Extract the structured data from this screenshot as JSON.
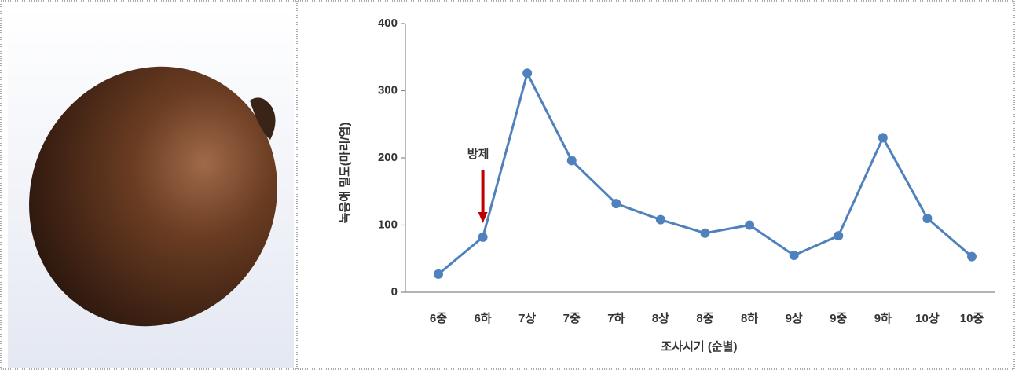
{
  "chart_data": {
    "type": "line",
    "categories": [
      "6중",
      "6하",
      "7상",
      "7중",
      "7하",
      "8상",
      "8중",
      "8하",
      "9상",
      "9중",
      "9하",
      "10상",
      "10중"
    ],
    "series": [
      {
        "name": "녹응애",
        "color": "#4f81bd",
        "values": [
          27,
          82,
          326,
          196,
          132,
          108,
          88,
          100,
          55,
          84,
          230,
          110,
          53
        ]
      }
    ],
    "ylim": [
      0,
      400
    ],
    "yticks": [
      0,
      100,
      200,
      300,
      400
    ],
    "y_label": "녹응애 밀도(마리/엽)",
    "x_label": "조사시기 (순별)",
    "annotations": [
      {
        "text": "방제",
        "category": "6하",
        "color": "#c00000"
      }
    ],
    "grid": false
  }
}
